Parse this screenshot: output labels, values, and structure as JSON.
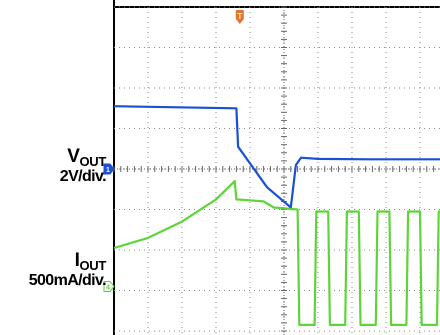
{
  "chart_data": {
    "type": "line",
    "title": "",
    "xlabel": "",
    "ylabel": "",
    "grid": true,
    "x_divisions": 10,
    "y_divisions": 8,
    "xlim": [
      0,
      10
    ],
    "ylim": [
      0,
      8
    ],
    "trigger_marker": {
      "label": "T",
      "x": 3.7,
      "color": "#e8742a"
    },
    "series": [
      {
        "name": "V_OUT",
        "scale": "2V/div.",
        "color": "#1a4fd6",
        "ground_marker": {
          "label": "1",
          "y": 4.0
        },
        "points": [
          [
            0.0,
            5.55
          ],
          [
            3.6,
            5.5
          ],
          [
            3.65,
            4.55
          ],
          [
            4.5,
            3.55
          ],
          [
            5.2,
            3.05
          ],
          [
            5.35,
            4.1
          ],
          [
            5.5,
            4.28
          ],
          [
            6.0,
            4.25
          ],
          [
            7.5,
            4.24
          ],
          [
            10.0,
            4.24
          ]
        ]
      },
      {
        "name": "I_OUT",
        "scale": "500mA/div.",
        "color": "#5fd43a",
        "ground_marker": {
          "label": "4",
          "y": 1.1
        },
        "points": [
          [
            0.0,
            2.05
          ],
          [
            1.0,
            2.3
          ],
          [
            2.0,
            2.7
          ],
          [
            3.0,
            3.25
          ],
          [
            3.55,
            3.7
          ],
          [
            3.6,
            3.25
          ],
          [
            4.4,
            3.2
          ],
          [
            4.7,
            3.05
          ],
          [
            5.4,
            3.0
          ],
          [
            5.45,
            0.15
          ],
          [
            5.9,
            0.15
          ],
          [
            5.95,
            2.95
          ],
          [
            6.3,
            2.95
          ],
          [
            6.35,
            0.15
          ],
          [
            6.8,
            0.15
          ],
          [
            6.85,
            2.95
          ],
          [
            7.2,
            2.95
          ],
          [
            7.25,
            0.15
          ],
          [
            7.7,
            0.15
          ],
          [
            7.75,
            2.95
          ],
          [
            8.1,
            2.95
          ],
          [
            8.15,
            0.15
          ],
          [
            8.6,
            0.15
          ],
          [
            8.65,
            2.95
          ],
          [
            9.0,
            2.95
          ],
          [
            9.05,
            0.15
          ],
          [
            9.5,
            0.15
          ],
          [
            9.55,
            2.95
          ],
          [
            9.9,
            2.95
          ],
          [
            9.95,
            0.15
          ],
          [
            10.0,
            0.15
          ]
        ]
      }
    ]
  },
  "labels": {
    "vout_main": "V",
    "vout_sub": "OUT",
    "vout_scale": "2V/div.",
    "iout_main": "I",
    "iout_sub": "OUT",
    "iout_scale": "500mA/div."
  }
}
